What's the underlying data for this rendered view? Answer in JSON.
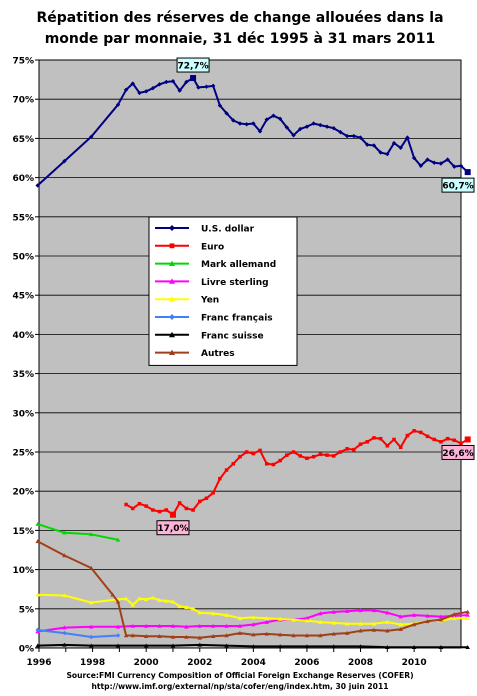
{
  "chart_data": {
    "type": "line",
    "title_line1": "Répatition des réserves de change allouées dans la",
    "title_line2": "monde par monnaie, 31 déc 1995 à 31 mars 2011",
    "xlabel": "",
    "ylabel": "",
    "xlim": [
      1996,
      2011.75
    ],
    "ylim": [
      0,
      75
    ],
    "y_ticks": [
      0,
      5,
      10,
      15,
      20,
      25,
      30,
      35,
      40,
      45,
      50,
      55,
      60,
      65,
      70,
      75
    ],
    "y_tick_labels": [
      "0%",
      "5%",
      "10%",
      "15%",
      "20%",
      "25%",
      "30%",
      "35%",
      "40%",
      "45%",
      "50%",
      "55%",
      "60%",
      "65%",
      "70%",
      "75%"
    ],
    "x_ticks": [
      1996,
      1998,
      2000,
      2002,
      2004,
      2006,
      2008,
      2010
    ],
    "x_tick_labels": [
      "1996",
      "1998",
      "2000",
      "2002",
      "2004",
      "2006",
      "2008",
      "2010"
    ],
    "grid": true,
    "plot_background": "#c0c0c0",
    "legend_position": "center",
    "series": [
      {
        "name": "U.S. dollar",
        "color": "#000080",
        "marker": "diamond",
        "points": [
          [
            1995.95,
            59.0
          ],
          [
            1996.95,
            62.1
          ],
          [
            1997.95,
            65.2
          ],
          [
            1998.95,
            69.3
          ],
          [
            1999.25,
            71.2
          ],
          [
            1999.5,
            72.0
          ],
          [
            1999.75,
            70.8
          ],
          [
            2000,
            71.0
          ],
          [
            2000.25,
            71.4
          ],
          [
            2000.5,
            71.9
          ],
          [
            2000.75,
            72.2
          ],
          [
            2001,
            72.3
          ],
          [
            2001.25,
            71.1
          ],
          [
            2001.5,
            72.2
          ],
          [
            2001.75,
            72.7
          ],
          [
            2001.95,
            71.5
          ],
          [
            2002.25,
            71.6
          ],
          [
            2002.5,
            71.7
          ],
          [
            2002.75,
            69.2
          ],
          [
            2003,
            68.2
          ],
          [
            2003.25,
            67.3
          ],
          [
            2003.5,
            66.9
          ],
          [
            2003.75,
            66.8
          ],
          [
            2004,
            66.9
          ],
          [
            2004.25,
            65.9
          ],
          [
            2004.5,
            67.4
          ],
          [
            2004.75,
            67.9
          ],
          [
            2005,
            67.5
          ],
          [
            2005.25,
            66.4
          ],
          [
            2005.5,
            65.4
          ],
          [
            2005.75,
            66.2
          ],
          [
            2006,
            66.5
          ],
          [
            2006.25,
            66.9
          ],
          [
            2006.5,
            66.7
          ],
          [
            2006.75,
            66.5
          ],
          [
            2007,
            66.3
          ],
          [
            2007.25,
            65.8
          ],
          [
            2007.5,
            65.3
          ],
          [
            2007.75,
            65.3
          ],
          [
            2008,
            65.1
          ],
          [
            2008.25,
            64.2
          ],
          [
            2008.5,
            64.1
          ],
          [
            2008.75,
            63.2
          ],
          [
            2009,
            63.0
          ],
          [
            2009.25,
            64.4
          ],
          [
            2009.5,
            63.8
          ],
          [
            2009.75,
            65.1
          ],
          [
            2010,
            62.5
          ],
          [
            2010.25,
            61.5
          ],
          [
            2010.5,
            62.3
          ],
          [
            2010.75,
            61.9
          ],
          [
            2011,
            61.8
          ],
          [
            2011.25,
            62.3
          ],
          [
            2011.5,
            61.4
          ],
          [
            2011.75,
            61.5
          ],
          [
            2012,
            60.7
          ]
        ]
      },
      {
        "name": "Euro",
        "color": "#ff0000",
        "marker": "square",
        "points": [
          [
            1999.25,
            18.3
          ],
          [
            1999.5,
            17.8
          ],
          [
            1999.75,
            18.4
          ],
          [
            2000,
            18.1
          ],
          [
            2000.25,
            17.6
          ],
          [
            2000.5,
            17.4
          ],
          [
            2000.75,
            17.6
          ],
          [
            2001,
            17.0
          ],
          [
            2001.25,
            18.5
          ],
          [
            2001.5,
            17.8
          ],
          [
            2001.75,
            17.6
          ],
          [
            2002,
            18.7
          ],
          [
            2002.25,
            19.1
          ],
          [
            2002.5,
            19.8
          ],
          [
            2002.75,
            21.6
          ],
          [
            2003,
            22.7
          ],
          [
            2003.25,
            23.5
          ],
          [
            2003.5,
            24.4
          ],
          [
            2003.75,
            25.0
          ],
          [
            2004,
            24.8
          ],
          [
            2004.25,
            25.2
          ],
          [
            2004.5,
            23.5
          ],
          [
            2004.75,
            23.4
          ],
          [
            2005,
            23.9
          ],
          [
            2005.25,
            24.6
          ],
          [
            2005.5,
            25.0
          ],
          [
            2005.75,
            24.5
          ],
          [
            2006,
            24.2
          ],
          [
            2006.25,
            24.4
          ],
          [
            2006.5,
            24.7
          ],
          [
            2006.75,
            24.6
          ],
          [
            2007,
            24.5
          ],
          [
            2007.25,
            25.0
          ],
          [
            2007.5,
            25.4
          ],
          [
            2007.75,
            25.3
          ],
          [
            2008,
            26.0
          ],
          [
            2008.25,
            26.3
          ],
          [
            2008.5,
            26.8
          ],
          [
            2008.75,
            26.7
          ],
          [
            2009,
            25.8
          ],
          [
            2009.25,
            26.6
          ],
          [
            2009.5,
            25.6
          ],
          [
            2009.75,
            27.1
          ],
          [
            2010,
            27.7
          ],
          [
            2010.25,
            27.5
          ],
          [
            2010.5,
            27.0
          ],
          [
            2010.75,
            26.6
          ],
          [
            2011,
            26.3
          ],
          [
            2011.25,
            26.7
          ],
          [
            2011.5,
            26.5
          ],
          [
            2011.75,
            26.1
          ],
          [
            2012,
            26.6
          ]
        ]
      },
      {
        "name": "Mark allemand",
        "color": "#00d800",
        "marker": "triangle",
        "points": [
          [
            1995.95,
            15.8
          ],
          [
            1996.95,
            14.7
          ],
          [
            1997.95,
            14.5
          ],
          [
            1998.95,
            13.8
          ]
        ]
      },
      {
        "name": "Livre sterling",
        "color": "#ff00ff",
        "marker": "triangle",
        "points": [
          [
            1995.95,
            2.1
          ],
          [
            1996.95,
            2.6
          ],
          [
            1997.95,
            2.7
          ],
          [
            1998.95,
            2.7
          ],
          [
            1999.5,
            2.8
          ],
          [
            2000,
            2.8
          ],
          [
            2000.5,
            2.8
          ],
          [
            2001,
            2.8
          ],
          [
            2001.5,
            2.7
          ],
          [
            2002,
            2.8
          ],
          [
            2002.5,
            2.8
          ],
          [
            2003,
            2.8
          ],
          [
            2003.5,
            2.8
          ],
          [
            2004,
            3.0
          ],
          [
            2004.5,
            3.3
          ],
          [
            2005,
            3.6
          ],
          [
            2005.5,
            3.6
          ],
          [
            2006,
            3.8
          ],
          [
            2006.5,
            4.4
          ],
          [
            2007,
            4.6
          ],
          [
            2007.5,
            4.7
          ],
          [
            2008,
            4.8
          ],
          [
            2008.5,
            4.8
          ],
          [
            2009,
            4.5
          ],
          [
            2009.5,
            4.0
          ],
          [
            2010,
            4.2
          ],
          [
            2010.5,
            4.1
          ],
          [
            2011,
            4.0
          ],
          [
            2011.5,
            4.1
          ],
          [
            2012,
            4.2
          ]
        ]
      },
      {
        "name": "Yen",
        "color": "#ffff00",
        "marker": "triangle",
        "points": [
          [
            1995.95,
            6.8
          ],
          [
            1996.95,
            6.7
          ],
          [
            1997.95,
            5.8
          ],
          [
            1998.95,
            6.2
          ],
          [
            1999.25,
            6.3
          ],
          [
            1999.5,
            5.5
          ],
          [
            1999.75,
            6.3
          ],
          [
            2000,
            6.2
          ],
          [
            2000.25,
            6.4
          ],
          [
            2000.5,
            6.1
          ],
          [
            2000.75,
            6.0
          ],
          [
            2001,
            5.9
          ],
          [
            2001.25,
            5.3
          ],
          [
            2001.5,
            5.2
          ],
          [
            2001.75,
            5.0
          ],
          [
            2002,
            4.5
          ],
          [
            2002.5,
            4.4
          ],
          [
            2003,
            4.2
          ],
          [
            2003.5,
            3.8
          ],
          [
            2004,
            3.9
          ],
          [
            2004.5,
            3.8
          ],
          [
            2005,
            3.7
          ],
          [
            2005.5,
            3.6
          ],
          [
            2006,
            3.5
          ],
          [
            2006.5,
            3.3
          ],
          [
            2007,
            3.2
          ],
          [
            2007.5,
            3.1
          ],
          [
            2008,
            3.1
          ],
          [
            2008.5,
            3.1
          ],
          [
            2009,
            3.3
          ],
          [
            2009.5,
            3.0
          ],
          [
            2010,
            3.1
          ],
          [
            2010.5,
            3.4
          ],
          [
            2011,
            3.5
          ],
          [
            2011.5,
            3.8
          ],
          [
            2012,
            3.8
          ]
        ]
      },
      {
        "name": "Franc français",
        "color": "#4080ff",
        "marker": "diamond",
        "points": [
          [
            1995.95,
            2.3
          ],
          [
            1996.95,
            1.9
          ],
          [
            1997.95,
            1.4
          ],
          [
            1998.95,
            1.6
          ]
        ]
      },
      {
        "name": "Franc suisse",
        "color": "#000000",
        "marker": "triangle",
        "points": [
          [
            1995.95,
            0.3
          ],
          [
            1996.95,
            0.4
          ],
          [
            1997.95,
            0.3
          ],
          [
            1998.95,
            0.3
          ],
          [
            2000,
            0.3
          ],
          [
            2001,
            0.3
          ],
          [
            2002,
            0.4
          ],
          [
            2003,
            0.3
          ],
          [
            2004,
            0.2
          ],
          [
            2005,
            0.2
          ],
          [
            2006,
            0.2
          ],
          [
            2007,
            0.2
          ],
          [
            2008,
            0.2
          ],
          [
            2009,
            0.1
          ],
          [
            2010,
            0.1
          ],
          [
            2011,
            0.1
          ],
          [
            2012,
            0.1
          ]
        ]
      },
      {
        "name": "Autres",
        "color": "#a0401a",
        "marker": "triangle",
        "points": [
          [
            1995.95,
            13.6
          ],
          [
            1996.95,
            11.8
          ],
          [
            1997.95,
            10.2
          ],
          [
            1998.75,
            6.8
          ],
          [
            1998.95,
            5.9
          ],
          [
            1999.25,
            1.6
          ],
          [
            1999.5,
            1.6
          ],
          [
            2000,
            1.5
          ],
          [
            2000.5,
            1.5
          ],
          [
            2001,
            1.4
          ],
          [
            2001.5,
            1.4
          ],
          [
            2002,
            1.3
          ],
          [
            2002.5,
            1.5
          ],
          [
            2003,
            1.6
          ],
          [
            2003.5,
            1.9
          ],
          [
            2004,
            1.7
          ],
          [
            2004.5,
            1.8
          ],
          [
            2005,
            1.7
          ],
          [
            2005.5,
            1.6
          ],
          [
            2006,
            1.6
          ],
          [
            2006.5,
            1.6
          ],
          [
            2007,
            1.8
          ],
          [
            2007.5,
            1.9
          ],
          [
            2008,
            2.2
          ],
          [
            2008.5,
            2.3
          ],
          [
            2009,
            2.2
          ],
          [
            2009.5,
            2.4
          ],
          [
            2010,
            3.0
          ],
          [
            2010.5,
            3.4
          ],
          [
            2011,
            3.6
          ],
          [
            2011.5,
            4.3
          ],
          [
            2012,
            4.6
          ]
        ]
      }
    ],
    "annotations": [
      {
        "text": "72,7%",
        "x": 2001.75,
        "y": 72.7,
        "box_color": "#ccffff",
        "anchor": "above"
      },
      {
        "text": "60,7%",
        "x": 2012,
        "y": 60.7,
        "box_color": "#ccffff",
        "anchor": "below"
      },
      {
        "text": "26,6%",
        "x": 2012,
        "y": 26.6,
        "box_color": "#ffb3d9",
        "anchor": "below"
      },
      {
        "text": "17,0%",
        "x": 2001,
        "y": 17.0,
        "box_color": "#ffb3d9",
        "anchor": "below"
      }
    ],
    "source_line1": "Source:FMI  Currency Composition of Official Foreign Exchange Reserves (COFER)",
    "source_line2": "http://www.imf.org/external/np/sta/cofer/eng/index.htm, 30 juin 2011"
  }
}
